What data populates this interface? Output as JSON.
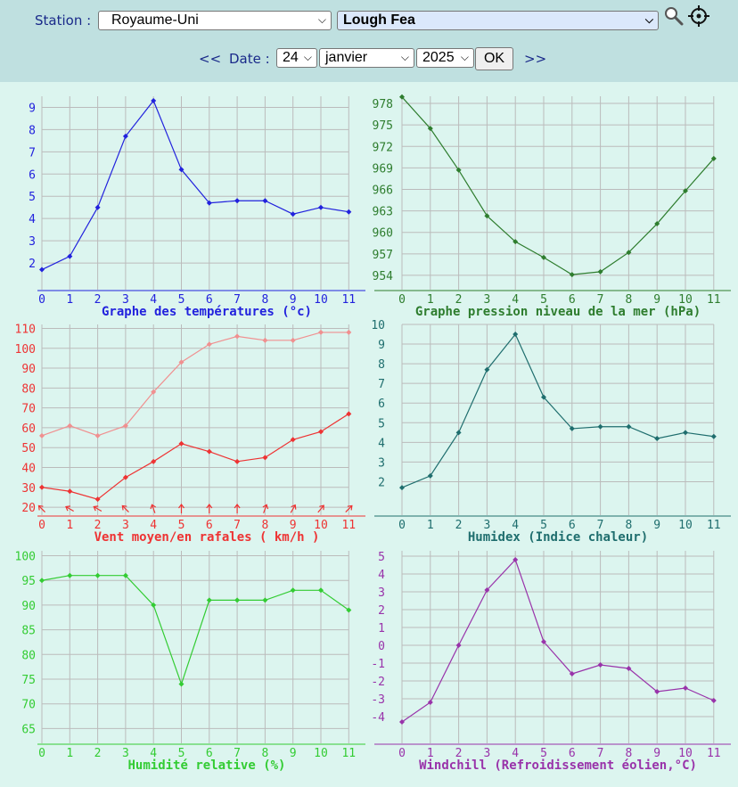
{
  "header": {
    "station_label": "Station :",
    "country": "Royaume-Uni",
    "station": "Lough Fea",
    "prev": "<<",
    "date_label": "Date :",
    "day": "24",
    "month": "janvier",
    "year": "2025",
    "ok": "OK",
    "next": ">>",
    "icons": [
      "search-icon",
      "locate-icon"
    ]
  },
  "chart_data": [
    {
      "id": "temp",
      "type": "line",
      "color": "#2222dd",
      "title": "Graphe des températures (°c)",
      "x": [
        0,
        1,
        2,
        3,
        4,
        5,
        6,
        7,
        8,
        9,
        10,
        11
      ],
      "ylim": [
        0.8,
        9.5
      ],
      "yticks": [
        2,
        3,
        4,
        5,
        6,
        7,
        8,
        9
      ],
      "series": [
        {
          "values": [
            1.7,
            2.3,
            4.5,
            7.7,
            9.3,
            6.2,
            4.7,
            4.8,
            4.8,
            4.2,
            4.5,
            4.3
          ]
        }
      ]
    },
    {
      "id": "pressure",
      "type": "line",
      "color": "#2e7d2e",
      "title": "Graphe pression niveau de la mer (hPa)",
      "x": [
        0,
        1,
        2,
        3,
        4,
        5,
        6,
        7,
        8,
        9,
        10,
        11
      ],
      "ylim": [
        952,
        979
      ],
      "yticks": [
        954,
        957,
        960,
        963,
        966,
        969,
        972,
        975,
        978
      ],
      "series": [
        {
          "values": [
            978.9,
            974.5,
            968.7,
            962.3,
            958.7,
            956.5,
            954.1,
            954.5,
            957.2,
            961.2,
            965.8,
            970.3
          ]
        }
      ]
    },
    {
      "id": "wind",
      "type": "line",
      "color": "#ee3333",
      "title": "Vent moyen/en rafales ( km/h )",
      "x": [
        0,
        1,
        2,
        3,
        4,
        5,
        6,
        7,
        8,
        9,
        10,
        11
      ],
      "ylim": [
        16,
        112
      ],
      "yticks": [
        20,
        30,
        40,
        50,
        60,
        70,
        80,
        90,
        100,
        110
      ],
      "series": [
        {
          "values": [
            56,
            61,
            56,
            61,
            78,
            93,
            102,
            106,
            104,
            104,
            108,
            108
          ],
          "color": "#f09090"
        },
        {
          "values": [
            30,
            28,
            24,
            35,
            43,
            52,
            48,
            43,
            45,
            54,
            58,
            67
          ],
          "color": "#ee3333"
        }
      ],
      "wind_dir_deg": [
        315,
        300,
        300,
        315,
        340,
        0,
        0,
        0,
        20,
        30,
        40,
        45
      ]
    },
    {
      "id": "humidex",
      "type": "line",
      "color": "#1f6e6e",
      "title": "Humidex (Indice chaleur)",
      "x": [
        0,
        1,
        2,
        3,
        4,
        5,
        6,
        7,
        8,
        9,
        10,
        11
      ],
      "ylim": [
        0.3,
        10
      ],
      "yticks": [
        2,
        3,
        4,
        5,
        6,
        7,
        8,
        9,
        10
      ],
      "series": [
        {
          "values": [
            1.7,
            2.3,
            4.5,
            7.7,
            9.5,
            6.3,
            4.7,
            4.8,
            4.8,
            4.2,
            4.5,
            4.3
          ]
        }
      ]
    },
    {
      "id": "humidity",
      "type": "line",
      "color": "#33cc33",
      "title": "Humidité relative (%)",
      "x": [
        0,
        1,
        2,
        3,
        4,
        5,
        6,
        7,
        8,
        9,
        10,
        11
      ],
      "ylim": [
        62,
        101
      ],
      "yticks": [
        65,
        70,
        75,
        80,
        85,
        90,
        95,
        100
      ],
      "series": [
        {
          "values": [
            95,
            96,
            96,
            96,
            90,
            74,
            91,
            91,
            91,
            93,
            93,
            89
          ]
        }
      ]
    },
    {
      "id": "windchill",
      "type": "line",
      "color": "#9933aa",
      "title": "Windchill (Refroidissement éolien,°C)",
      "x": [
        0,
        1,
        2,
        3,
        4,
        5,
        6,
        7,
        8,
        9,
        10,
        11
      ],
      "ylim": [
        -5.5,
        5.3
      ],
      "yticks": [
        -4,
        -3,
        -2,
        -1,
        0,
        1,
        2,
        3,
        4,
        5
      ],
      "series": [
        {
          "values": [
            -4.3,
            -3.2,
            0.0,
            3.1,
            4.8,
            0.2,
            -1.6,
            -1.1,
            -1.3,
            -2.6,
            -2.4,
            -3.1
          ]
        }
      ]
    }
  ]
}
